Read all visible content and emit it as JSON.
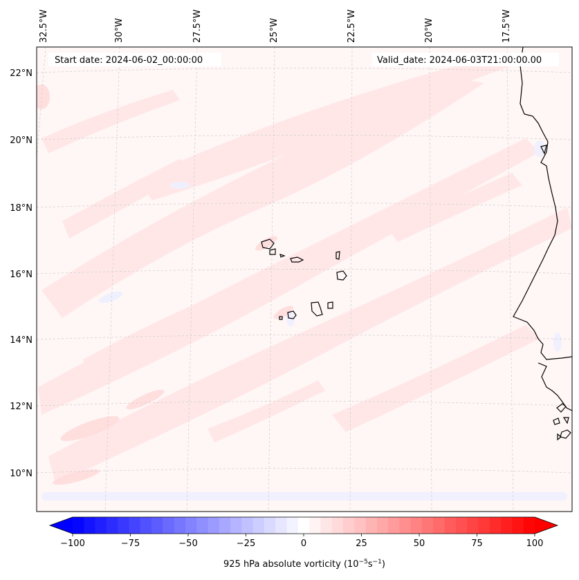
{
  "map": {
    "start_date_text": "Start date: 2024-06-02_00:00:00",
    "valid_date_text": "Valid_date: 2024-06-03T21:00:00.00",
    "longitude_labels": [
      "32.5°W",
      "30°W",
      "27.5°W",
      "25°W",
      "22.5°W",
      "20°W",
      "17.5°W"
    ],
    "latitude_labels": [
      "22°N",
      "20°N",
      "18°N",
      "16°N",
      "14°N",
      "12°N",
      "10°N"
    ],
    "colors": {
      "negative_max": "#0000ff",
      "positive_max": "#ff0000",
      "neutral": "#ffffff",
      "field_light_red": "#ffe8e8",
      "field_faint_red": "#fff3f3",
      "field_faint_blue": "#f0f2ff",
      "coastline": "#000000",
      "gridline": "#c8c8c8"
    }
  },
  "colorbar": {
    "label": "925 hPa absolute vorticity (10",
    "label_exp1": "−5",
    "label_mid": "s",
    "label_exp2": "−1",
    "label_end": ")",
    "vmin": -100,
    "vmax": 100,
    "levels": 41,
    "ticks": [
      "−100",
      "−75",
      "−50",
      "−25",
      "0",
      "25",
      "50",
      "75",
      "100"
    ],
    "tick_values": [
      -100,
      -75,
      -50,
      -25,
      0,
      25,
      50,
      75,
      100
    ]
  }
}
